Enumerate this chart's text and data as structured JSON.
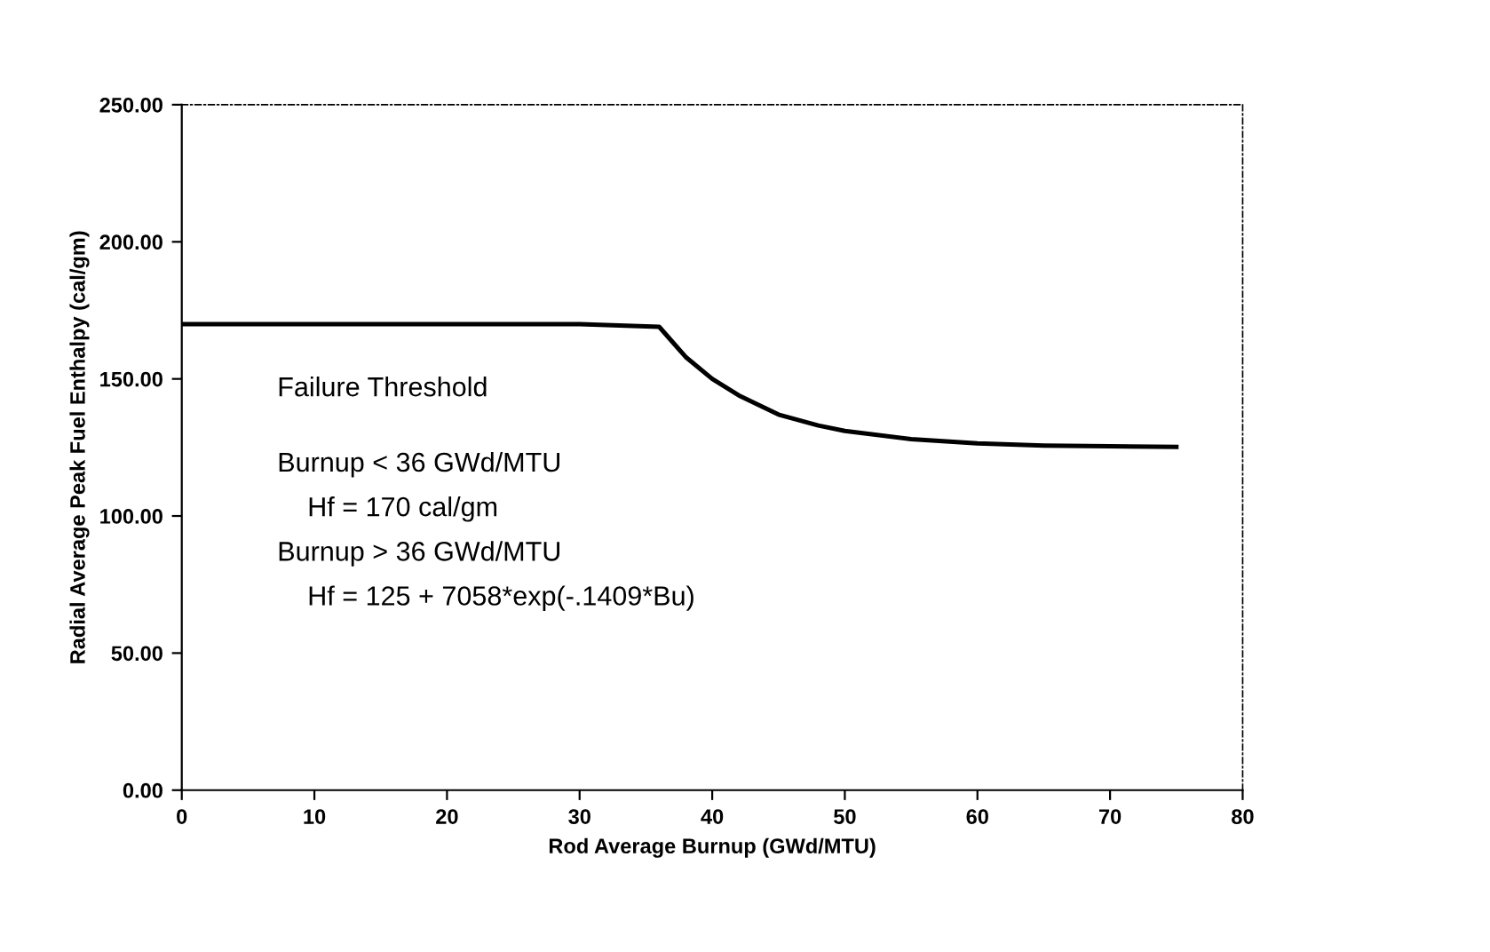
{
  "chart_data": {
    "type": "line",
    "xlabel": "Rod Average Burnup (GWd/MTU)",
    "ylabel": "Radial Average Peak Fuel Enthalpy (cal/gm)",
    "x": [
      0,
      10,
      20,
      30,
      36,
      38,
      40,
      42,
      45,
      48,
      50,
      55,
      60,
      65,
      70,
      75
    ],
    "series": [
      {
        "color": "#000000",
        "values": [
          170,
          170,
          170,
          170,
          169,
          158,
          150,
          144,
          137,
          133,
          131,
          128,
          126.5,
          125.7,
          125.4,
          125.2
        ]
      }
    ],
    "xlim": [
      0,
      80
    ],
    "xticks": [
      0,
      10,
      20,
      30,
      40,
      50,
      60,
      70,
      80
    ],
    "ylim": [
      0,
      250
    ],
    "yticks": [
      {
        "value": 0,
        "label": "0.00"
      },
      {
        "value": 50,
        "label": "50.00"
      },
      {
        "value": 100,
        "label": "100.00"
      },
      {
        "value": 150,
        "label": "150.00"
      },
      {
        "value": 200,
        "label": "200.00"
      },
      {
        "value": 250,
        "label": "250.00"
      }
    ],
    "grid": false,
    "legend": false,
    "marker": "none",
    "line_style": "solid",
    "annotations": [
      "Failure Threshold",
      "Burnup < 36 GWd/MTU",
      "    Hf = 170 cal/gm",
      "Burnup > 36 GWd/MTU",
      "    Hf = 125 + 7058*exp(-.1409*Bu)"
    ]
  }
}
